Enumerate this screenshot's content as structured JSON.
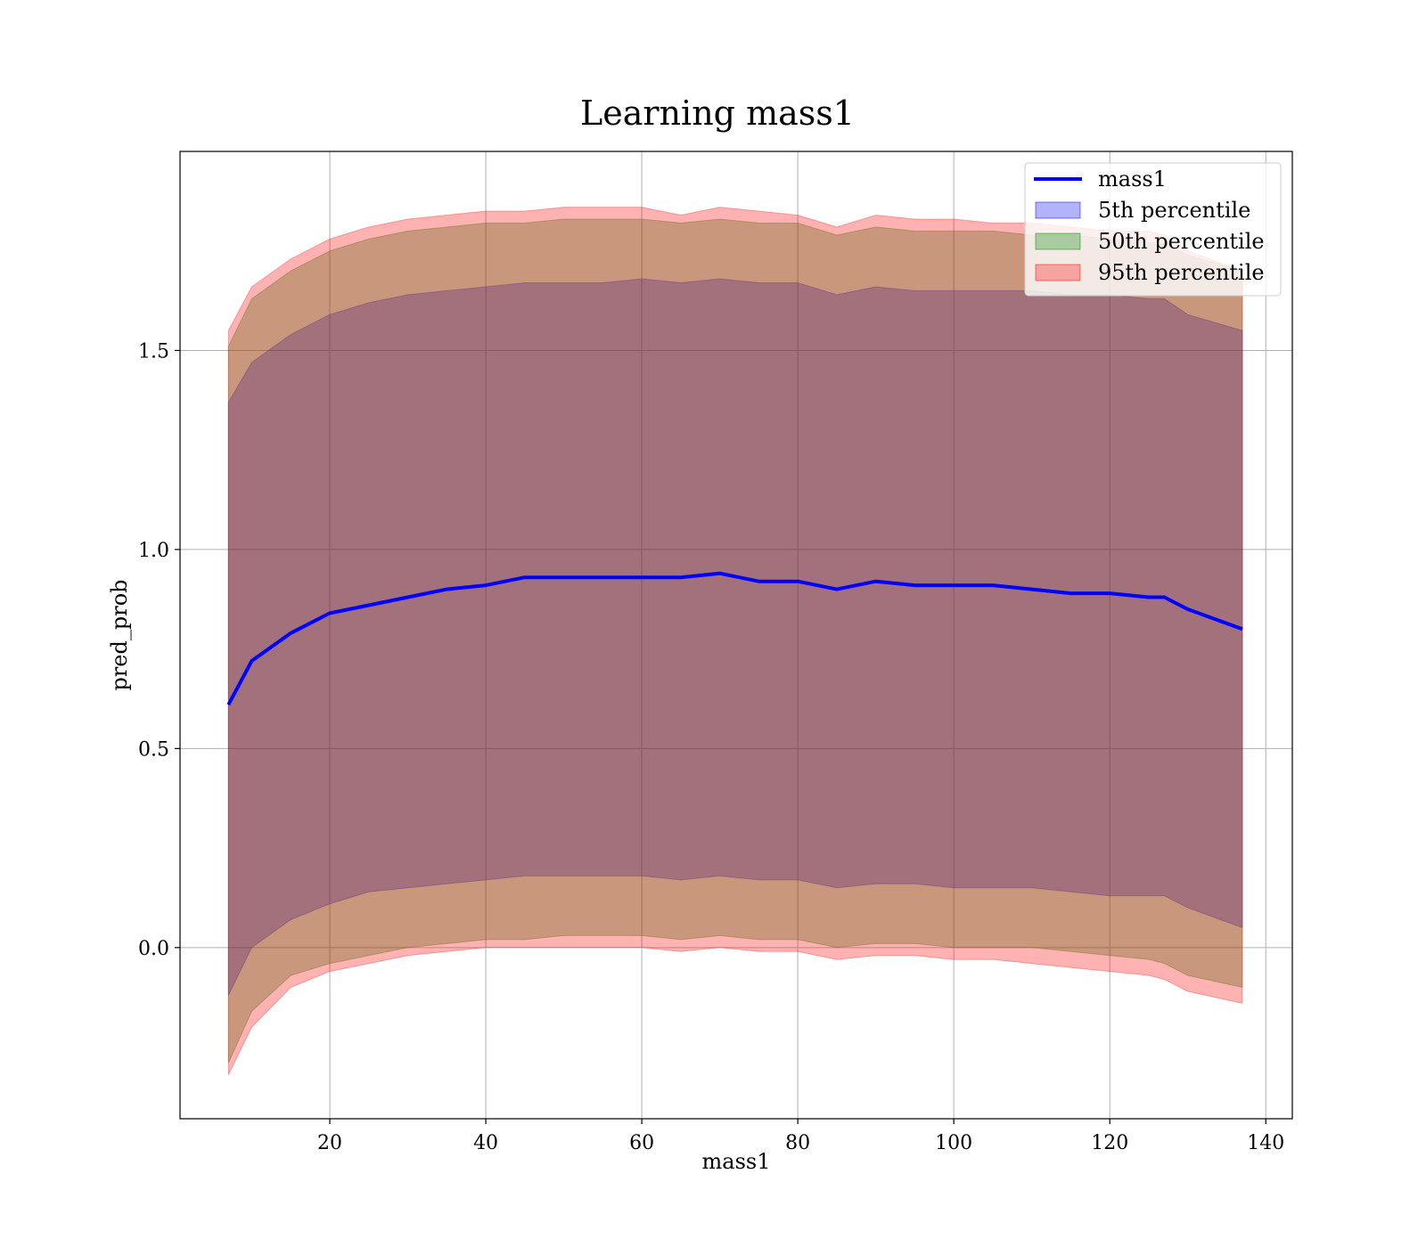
{
  "chart_data": {
    "type": "area",
    "title": "Learning mass1",
    "xlabel": "mass1",
    "ylabel": "pred_prob",
    "xlim": [
      0.8,
      143.4
    ],
    "ylim": [
      -0.43,
      2.0
    ],
    "xticks": [
      20,
      40,
      60,
      80,
      100,
      120,
      140
    ],
    "xtick_labels": [
      "20",
      "40",
      "60",
      "80",
      "100",
      "120",
      "140"
    ],
    "yticks": [
      0.0,
      0.5,
      1.0,
      1.5
    ],
    "ytick_labels": [
      "0.0",
      "0.5",
      "1.0",
      "1.5"
    ],
    "grid": true,
    "legend_position": "top-right",
    "x": [
      7,
      10,
      15,
      20,
      25,
      30,
      35,
      40,
      45,
      50,
      55,
      60,
      65,
      70,
      75,
      80,
      85,
      90,
      95,
      100,
      105,
      110,
      115,
      120,
      125,
      127,
      130,
      137
    ],
    "series": [
      {
        "name": "mass1",
        "kind": "line",
        "color": "#0000ff",
        "values": [
          0.61,
          0.72,
          0.79,
          0.84,
          0.86,
          0.88,
          0.9,
          0.91,
          0.93,
          0.93,
          0.93,
          0.93,
          0.93,
          0.94,
          0.92,
          0.92,
          0.9,
          0.92,
          0.91,
          0.91,
          0.91,
          0.9,
          0.89,
          0.89,
          0.88,
          0.88,
          0.85,
          0.8
        ]
      },
      {
        "name": "5th percentile",
        "kind": "band",
        "color": "#0000ff",
        "opacity": 0.3,
        "lower": [
          -0.12,
          0.0,
          0.07,
          0.11,
          0.14,
          0.15,
          0.16,
          0.17,
          0.18,
          0.18,
          0.18,
          0.18,
          0.17,
          0.18,
          0.17,
          0.17,
          0.15,
          0.16,
          0.16,
          0.15,
          0.15,
          0.15,
          0.14,
          0.13,
          0.13,
          0.13,
          0.1,
          0.05
        ],
        "upper": [
          1.37,
          1.47,
          1.54,
          1.59,
          1.62,
          1.64,
          1.65,
          1.66,
          1.67,
          1.67,
          1.67,
          1.68,
          1.67,
          1.68,
          1.67,
          1.67,
          1.64,
          1.66,
          1.65,
          1.65,
          1.65,
          1.65,
          1.64,
          1.64,
          1.63,
          1.63,
          1.59,
          1.55
        ]
      },
      {
        "name": "50th percentile",
        "kind": "band",
        "color": "#008000",
        "opacity": 0.3,
        "lower": [
          -0.29,
          -0.16,
          -0.07,
          -0.04,
          -0.02,
          0.0,
          0.01,
          0.02,
          0.02,
          0.03,
          0.03,
          0.03,
          0.02,
          0.03,
          0.02,
          0.02,
          0.0,
          0.01,
          0.01,
          0.0,
          0.0,
          0.0,
          -0.01,
          -0.02,
          -0.03,
          -0.04,
          -0.07,
          -0.1
        ],
        "upper": [
          1.51,
          1.63,
          1.7,
          1.75,
          1.78,
          1.8,
          1.81,
          1.82,
          1.82,
          1.83,
          1.83,
          1.83,
          1.82,
          1.83,
          1.82,
          1.82,
          1.79,
          1.81,
          1.8,
          1.8,
          1.8,
          1.79,
          1.79,
          1.78,
          1.77,
          1.77,
          1.74,
          1.7
        ]
      },
      {
        "name": "95th percentile",
        "kind": "band",
        "color": "#ff0000",
        "opacity": 0.3,
        "lower": [
          -0.32,
          -0.2,
          -0.1,
          -0.06,
          -0.04,
          -0.02,
          -0.01,
          0.0,
          0.0,
          0.0,
          0.0,
          0.0,
          -0.01,
          0.0,
          -0.01,
          -0.01,
          -0.03,
          -0.02,
          -0.02,
          -0.03,
          -0.03,
          -0.04,
          -0.05,
          -0.06,
          -0.07,
          -0.08,
          -0.11,
          -0.14
        ],
        "upper": [
          1.55,
          1.66,
          1.73,
          1.78,
          1.81,
          1.83,
          1.84,
          1.85,
          1.85,
          1.86,
          1.86,
          1.86,
          1.84,
          1.86,
          1.85,
          1.84,
          1.81,
          1.84,
          1.83,
          1.83,
          1.82,
          1.82,
          1.81,
          1.8,
          1.8,
          1.79,
          1.75,
          1.7
        ]
      }
    ]
  }
}
